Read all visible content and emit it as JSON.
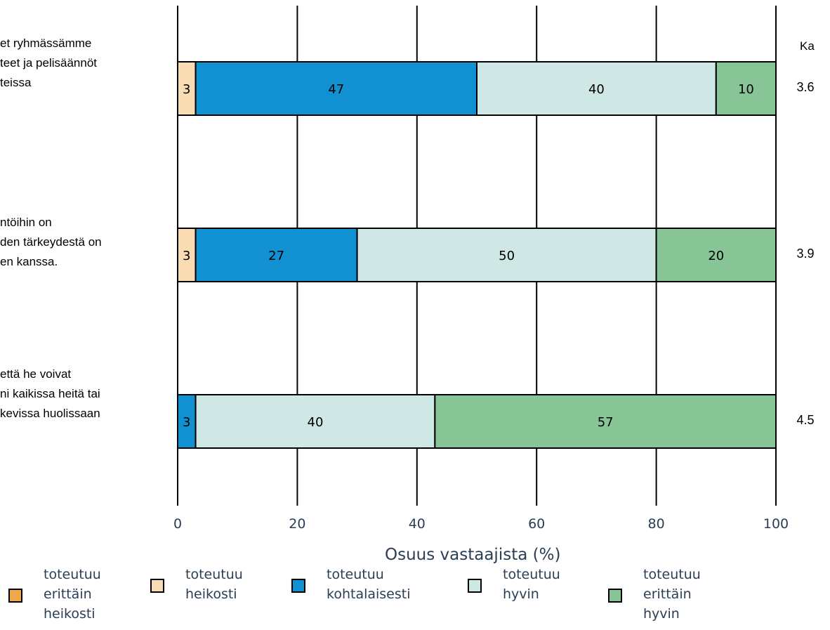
{
  "chart_data": {
    "type": "bar",
    "orientation": "horizontal",
    "stacked": true,
    "xlabel": "Osuus vastaajista (%)",
    "xlim": [
      0,
      100
    ],
    "xticks": [
      "0",
      "20",
      "40",
      "60",
      "80",
      "100"
    ],
    "grid": true,
    "mean_header": "Ka",
    "categories": [
      {
        "label_lines": [
          "et ryhmässämme",
          "teet ja pelisäännöt",
          "teissa"
        ],
        "mean": "3.6",
        "segments": [
          {
            "series": "toteutuu heikosti",
            "value": 3
          },
          {
            "series": "toteutuu kohtalaisesti",
            "value": 47
          },
          {
            "series": "toteutuu hyvin",
            "value": 40
          },
          {
            "series": "toteutuu erittäin hyvin",
            "value": 10
          }
        ]
      },
      {
        "label_lines": [
          "ntöihin on",
          "den tärkeydestä on",
          "en kanssa."
        ],
        "mean": "3.9",
        "segments": [
          {
            "series": "toteutuu heikosti",
            "value": 3
          },
          {
            "series": "toteutuu kohtalaisesti",
            "value": 27
          },
          {
            "series": "toteutuu hyvin",
            "value": 50
          },
          {
            "series": "toteutuu erittäin hyvin",
            "value": 20
          }
        ]
      },
      {
        "label_lines": [
          "että he voivat",
          "ni kaikissa heitä tai",
          "kevissa huolissaan"
        ],
        "mean": "4.5",
        "segments": [
          {
            "series": "toteutuu kohtalaisesti",
            "value": 3
          },
          {
            "series": "toteutuu hyvin",
            "value": 40
          },
          {
            "series": "toteutuu erittäin hyvin",
            "value": 57
          }
        ]
      }
    ],
    "legend": {
      "position": "bottom",
      "items": [
        {
          "label": "toteutuu\nerittäin\nheikosti",
          "color": "#f0a848"
        },
        {
          "label": "toteutuu\nheikosti",
          "color": "#f9dcb4"
        },
        {
          "label": "toteutuu\nkohtalaisesti",
          "color": "#1190d2"
        },
        {
          "label": "toteutuu\nhyvin",
          "color": "#cfe8e5"
        },
        {
          "label": "toteutuu\nerittäin\nhyvin",
          "color": "#88c596"
        }
      ]
    },
    "series_colors": {
      "toteutuu erittäin heikosti": "#f0a848",
      "toteutuu heikosti": "#f9dcb4",
      "toteutuu kohtalaisesti": "#1190d2",
      "toteutuu hyvin": "#cfe8e5",
      "toteutuu erittäin hyvin": "#88c596"
    }
  }
}
